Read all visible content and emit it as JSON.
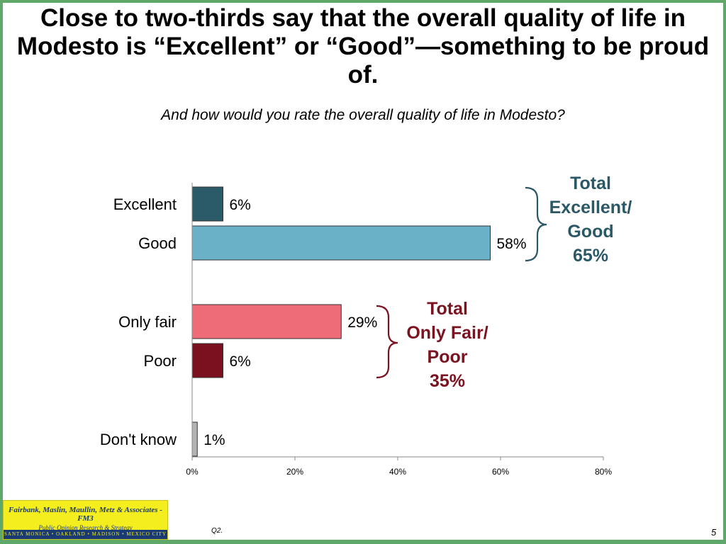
{
  "slide": {
    "title": "Close to two-thirds say that the overall quality of life in Modesto is “Excellent” or “Good”—something to be proud of.",
    "subtitle": "And how would you rate the overall quality of life in Modesto?",
    "question_ref": "Q2.",
    "page_number": "5",
    "border_color": "#5fa86a"
  },
  "logo": {
    "line1": "Fairbank, Maslin, Maullin, Metz & Associates - FM3",
    "line2": "Public Opinion Research & Strategy",
    "line3": "SANTA MONICA • OAKLAND • MADISON • MEXICO CITY",
    "bg_color": "#f5ee1f",
    "text_color": "#1a3a73"
  },
  "brackets": {
    "positive": {
      "line1": "Total",
      "line2": "Excellent/",
      "line3": "Good",
      "line4": "65%",
      "color": "#2b5866"
    },
    "negative": {
      "line1": "Total",
      "line2": "Only Fair/",
      "line3": "Poor",
      "line4": "35%",
      "color": "#7b1220"
    }
  },
  "chart_data": {
    "type": "bar",
    "orientation": "horizontal",
    "categories": [
      "Excellent",
      "Good",
      "Only fair",
      "Poor",
      "Don't know"
    ],
    "values": [
      6,
      58,
      29,
      6,
      1
    ],
    "value_labels": [
      "6%",
      "58%",
      "29%",
      "6%",
      "1%"
    ],
    "colors": [
      "#2b5a69",
      "#6ab0c7",
      "#ee6b78",
      "#7b101e",
      "#b3b3b3"
    ],
    "xlim": [
      0,
      80
    ],
    "xticks": [
      0,
      20,
      40,
      60,
      80
    ],
    "xtick_labels": [
      "0%",
      "20%",
      "40%",
      "60%",
      "80%"
    ],
    "grid": false
  }
}
